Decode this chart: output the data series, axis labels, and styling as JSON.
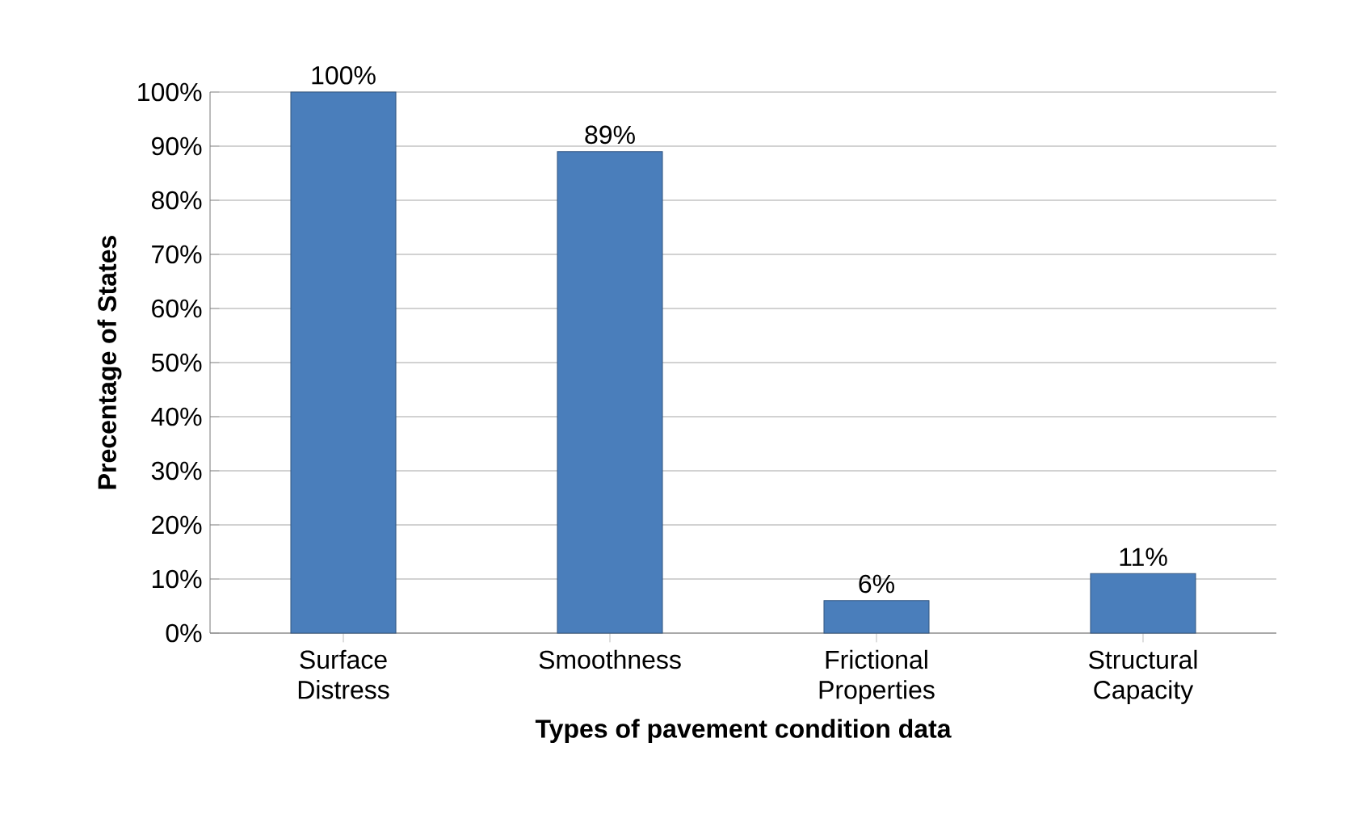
{
  "chart_data": {
    "type": "bar",
    "xlabel": "Types of pavement condition data",
    "ylabel": "Precentage of States",
    "categories": [
      "Surface Distress",
      "Smoothness",
      "Frictional Properties",
      "Structural Capacity"
    ],
    "values": [
      100,
      89,
      6,
      11
    ],
    "value_labels": [
      "100%",
      "89%",
      "6%",
      "11%"
    ],
    "color": "#4a7ebb",
    "ylim": [
      0,
      100
    ],
    "yticks": [
      {
        "value": 0,
        "label": "0%"
      },
      {
        "value": 10,
        "label": "10%"
      },
      {
        "value": 20,
        "label": "20%"
      },
      {
        "value": 30,
        "label": "30%"
      },
      {
        "value": 40,
        "label": "40%"
      },
      {
        "value": 50,
        "label": "50%"
      },
      {
        "value": 60,
        "label": "60%"
      },
      {
        "value": 70,
        "label": "70%"
      },
      {
        "value": 80,
        "label": "80%"
      },
      {
        "value": 90,
        "label": "90%"
      },
      {
        "value": 100,
        "label": "100%"
      }
    ],
    "grid": "y"
  }
}
